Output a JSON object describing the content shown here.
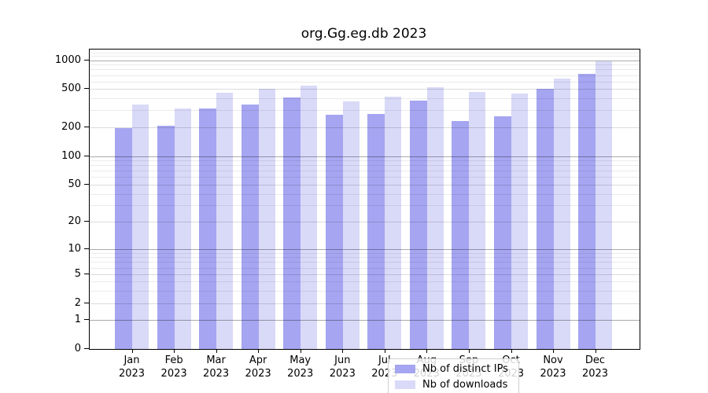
{
  "title": "org.Gg.eg.db 2023",
  "colors": {
    "distinct_ips": "#a5a5f1",
    "downloads": "#d9d9f8",
    "axis": "#000000",
    "grid_decade": "#b0b0b0",
    "grid_major": "#dcdcdc",
    "grid_minor": "#ececec",
    "legend_border": "#cfcfcf",
    "background": "#ffffff"
  },
  "legend": {
    "items": [
      {
        "label": "Nb of distinct IPs",
        "color": "#a5a5f1"
      },
      {
        "label": "Nb of downloads",
        "color": "#d9d9f8"
      }
    ]
  },
  "chart_data": {
    "type": "bar",
    "title": "org.Gg.eg.db 2023",
    "scale": "log1p",
    "xlabel": "",
    "ylabel": "",
    "grid": true,
    "legend_position": "inside-bottom-center",
    "categories": [
      "Jan 2023",
      "Feb 2023",
      "Mar 2023",
      "Apr 2023",
      "May 2023",
      "Jun 2023",
      "Jul 2023",
      "Aug 2023",
      "Sep 2023",
      "Oct 2023",
      "Nov 2023",
      "Dec 2023"
    ],
    "x_tick_labels": [
      {
        "month": "Jan",
        "year": "2023"
      },
      {
        "month": "Feb",
        "year": "2023"
      },
      {
        "month": "Mar",
        "year": "2023"
      },
      {
        "month": "Apr",
        "year": "2023"
      },
      {
        "month": "May",
        "year": "2023"
      },
      {
        "month": "Jun",
        "year": "2023"
      },
      {
        "month": "Jul",
        "year": "2023"
      },
      {
        "month": "Aug",
        "year": "2023"
      },
      {
        "month": "Sep",
        "year": "2023"
      },
      {
        "month": "Oct",
        "year": "2023"
      },
      {
        "month": "Nov",
        "year": "2023"
      },
      {
        "month": "Dec",
        "year": "2023"
      }
    ],
    "series": [
      {
        "name": "Nb of distinct IPs",
        "color": "#a5a5f1",
        "values": [
          197,
          209,
          312,
          344,
          406,
          268,
          278,
          381,
          233,
          262,
          500,
          725
        ]
      },
      {
        "name": "Nb of downloads",
        "color": "#d9d9f8",
        "values": [
          344,
          313,
          460,
          500,
          538,
          374,
          419,
          525,
          464,
          452,
          646,
          970
        ]
      }
    ],
    "yticks": [
      0,
      1,
      2,
      5,
      10,
      20,
      50,
      100,
      200,
      500,
      1000
    ],
    "ylim": [
      0,
      1300
    ]
  }
}
